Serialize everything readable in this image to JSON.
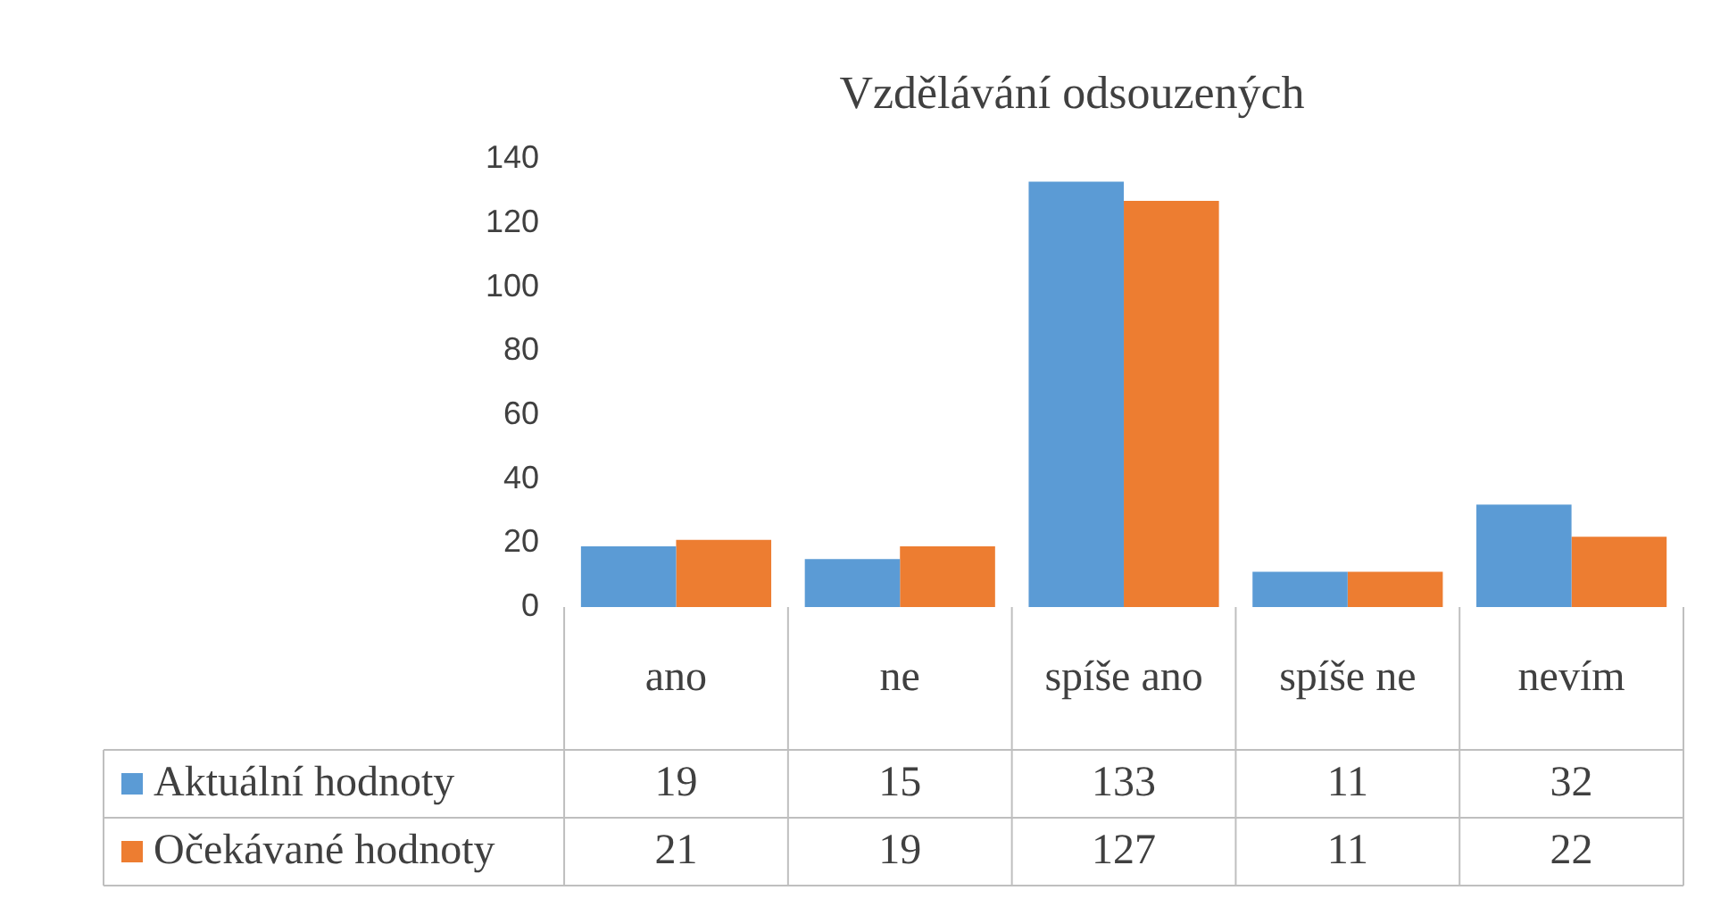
{
  "chart_data": {
    "type": "bar",
    "title": "Vzdělávání odsouzených",
    "categories": [
      "ano",
      "ne",
      "spíše ano",
      "spíše ne",
      "nevím"
    ],
    "series": [
      {
        "name": "Aktuální hodnoty",
        "color": "#5b9bd5",
        "values": [
          19,
          15,
          133,
          11,
          32
        ]
      },
      {
        "name": "Očekávané hodnoty",
        "color": "#ed7d31",
        "values": [
          21,
          19,
          127,
          11,
          22
        ]
      }
    ],
    "ylim": [
      0,
      140
    ],
    "yticks": [
      0,
      20,
      40,
      60,
      80,
      100,
      120,
      140
    ],
    "grid": false,
    "legend": "bottom",
    "data_labels": true
  }
}
